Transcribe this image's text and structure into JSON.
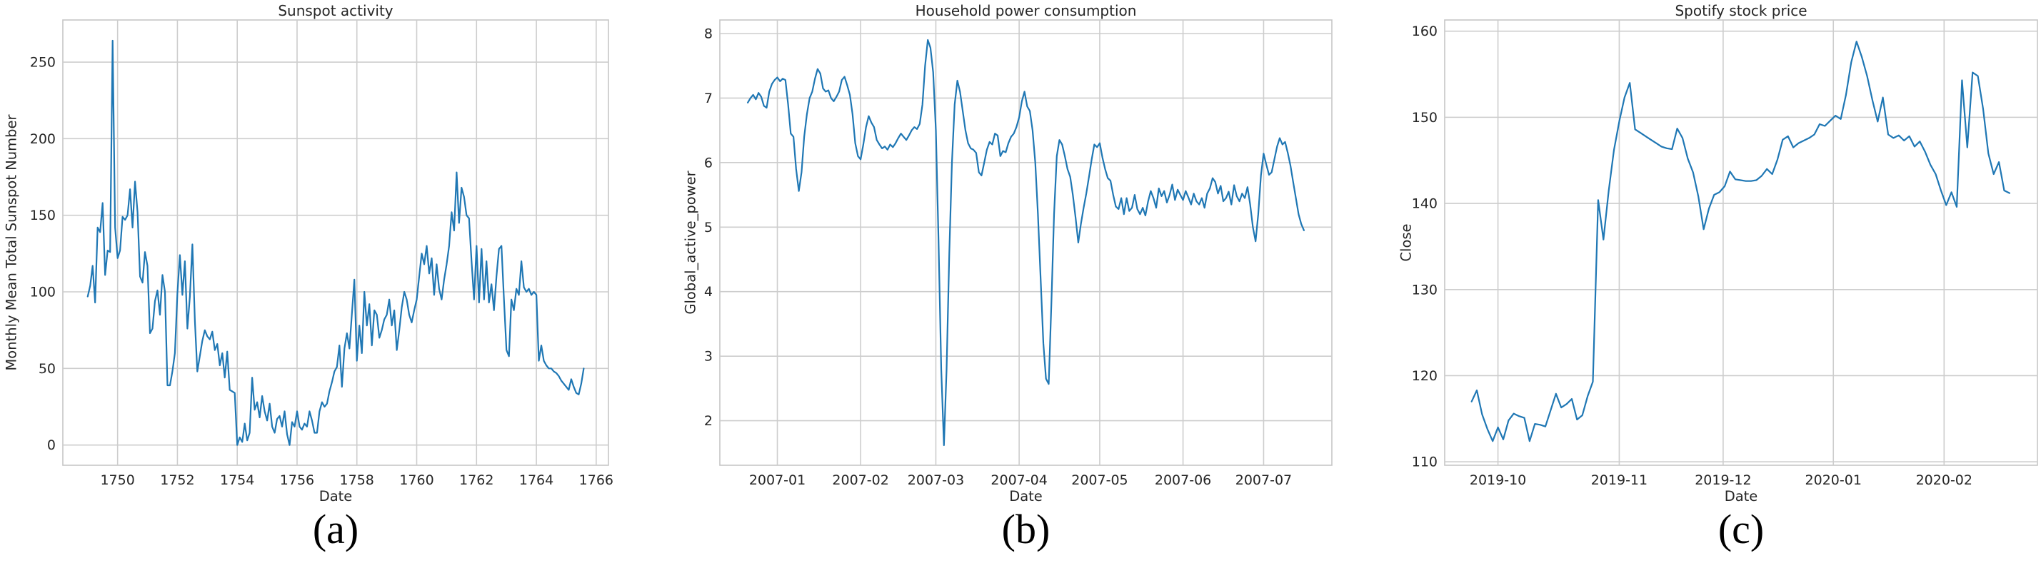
{
  "figure": {
    "background": "#ffffff",
    "grid_color": "#cdcdcd",
    "spine_color": "#c6c6c6",
    "text_color": "#262626",
    "line_color": "#1f77b4"
  },
  "chart_data": [
    {
      "type": "line",
      "title": "Sunspot activity",
      "xlabel": "Date",
      "ylabel": "Monthly Mean Total Sunspot Number",
      "caption": "(a)",
      "legend": "none",
      "grid": true,
      "xlim": [
        1748.17,
        1766.41
      ],
      "ylim": [
        -13.2,
        277.5
      ],
      "xticks": [
        {
          "pos": 1750,
          "label": "1750"
        },
        {
          "pos": 1752,
          "label": "1752"
        },
        {
          "pos": 1754,
          "label": "1754"
        },
        {
          "pos": 1756,
          "label": "1756"
        },
        {
          "pos": 1758,
          "label": "1758"
        },
        {
          "pos": 1760,
          "label": "1760"
        },
        {
          "pos": 1762,
          "label": "1762"
        },
        {
          "pos": 1764,
          "label": "1764"
        },
        {
          "pos": 1766,
          "label": "1766"
        }
      ],
      "yticks": [
        {
          "pos": 0,
          "label": "0"
        },
        {
          "pos": 50,
          "label": "50"
        },
        {
          "pos": 100,
          "label": "100"
        },
        {
          "pos": 150,
          "label": "150"
        },
        {
          "pos": 200,
          "label": "200"
        },
        {
          "pos": 250,
          "label": "250"
        }
      ],
      "x_start": 1749.0,
      "x_step": 0.0833333,
      "x_unit": "year (monthly samples)",
      "values": [
        97,
        104,
        117,
        93,
        142,
        139,
        158,
        111,
        127,
        126,
        264,
        142,
        122,
        127,
        149,
        147,
        150,
        167,
        142,
        172,
        152,
        110,
        106,
        126,
        117,
        73,
        76,
        94,
        101,
        85,
        111,
        100,
        39,
        39,
        48,
        60,
        99,
        124,
        98,
        120,
        76,
        97,
        131,
        81,
        48,
        58,
        68,
        75,
        71,
        69,
        74,
        62,
        66,
        52,
        60,
        44,
        61,
        36,
        35,
        34,
        0,
        5,
        2,
        14,
        3,
        8,
        44,
        23,
        28,
        18,
        32,
        22,
        16,
        27,
        12,
        8,
        17,
        19,
        12,
        22,
        7,
        0,
        15,
        12,
        22,
        12,
        10,
        14,
        12,
        22,
        16,
        8,
        8,
        22,
        28,
        25,
        27,
        35,
        41,
        48,
        51,
        65,
        38,
        63,
        73,
        63,
        86,
        108,
        55,
        78,
        60,
        100,
        78,
        92,
        65,
        88,
        85,
        70,
        75,
        82,
        85,
        95,
        78,
        88,
        62,
        75,
        90,
        100,
        95,
        85,
        80,
        88,
        95,
        110,
        125,
        118,
        130,
        112,
        122,
        98,
        118,
        102,
        95,
        108,
        118,
        130,
        152,
        140,
        178,
        145,
        168,
        162,
        150,
        148,
        120,
        95,
        130,
        93,
        128,
        95,
        120,
        93,
        105,
        88,
        110,
        128,
        130,
        95,
        62,
        58,
        95,
        88,
        102,
        98,
        120,
        103,
        100,
        102,
        98,
        100,
        98,
        55,
        65,
        55,
        52,
        50,
        50,
        48,
        47,
        45,
        42,
        40,
        38,
        36,
        43,
        38,
        34,
        33,
        40,
        50
      ]
    },
    {
      "type": "line",
      "title": "Household power consumption",
      "xlabel": "Date",
      "ylabel": "Global_active_power",
      "caption": "(b)",
      "legend": "none",
      "grid": true,
      "xlim": [
        5.6,
        233.4
      ],
      "ylim": [
        1.31,
        8.21
      ],
      "xticks": [
        {
          "pos": 27,
          "label": "2007-01"
        },
        {
          "pos": 58,
          "label": "2007-02"
        },
        {
          "pos": 86,
          "label": "2007-03"
        },
        {
          "pos": 117,
          "label": "2007-04"
        },
        {
          "pos": 147,
          "label": "2007-05"
        },
        {
          "pos": 178,
          "label": "2007-06"
        },
        {
          "pos": 208,
          "label": "2007-07"
        }
      ],
      "yticks": [
        {
          "pos": 2,
          "label": "2"
        },
        {
          "pos": 3,
          "label": "3"
        },
        {
          "pos": 4,
          "label": "4"
        },
        {
          "pos": 5,
          "label": "5"
        },
        {
          "pos": 6,
          "label": "6"
        },
        {
          "pos": 7,
          "label": "7"
        },
        {
          "pos": 8,
          "label": "8"
        }
      ],
      "x_start": 16,
      "x_step": 1,
      "x_unit": "days since 2006-12-05 (daily samples 2006-12-21 to 2007-07-16)",
      "values": [
        6.93,
        7.0,
        7.05,
        6.98,
        7.08,
        7.02,
        6.88,
        6.85,
        7.1,
        7.22,
        7.28,
        7.32,
        7.26,
        7.3,
        7.28,
        6.9,
        6.45,
        6.4,
        5.9,
        5.56,
        5.85,
        6.4,
        6.75,
        7.0,
        7.1,
        7.3,
        7.45,
        7.38,
        7.15,
        7.1,
        7.12,
        7.0,
        6.95,
        7.02,
        7.1,
        7.28,
        7.33,
        7.2,
        7.05,
        6.75,
        6.3,
        6.1,
        6.05,
        6.28,
        6.55,
        6.72,
        6.62,
        6.55,
        6.35,
        6.28,
        6.22,
        6.25,
        6.2,
        6.28,
        6.24,
        6.3,
        6.38,
        6.45,
        6.4,
        6.35,
        6.42,
        6.5,
        6.55,
        6.52,
        6.6,
        6.9,
        7.5,
        7.9,
        7.78,
        7.4,
        6.5,
        4.8,
        2.8,
        1.62,
        2.8,
        4.6,
        6.0,
        6.9,
        7.27,
        7.1,
        6.8,
        6.5,
        6.3,
        6.22,
        6.2,
        6.15,
        5.85,
        5.8,
        6.0,
        6.2,
        6.32,
        6.28,
        6.45,
        6.42,
        6.1,
        6.18,
        6.16,
        6.3,
        6.4,
        6.45,
        6.55,
        6.7,
        6.95,
        7.1,
        6.87,
        6.8,
        6.5,
        6.0,
        5.2,
        4.2,
        3.2,
        2.65,
        2.57,
        3.8,
        5.2,
        6.1,
        6.35,
        6.28,
        6.1,
        5.9,
        5.78,
        5.5,
        5.15,
        4.76,
        5.05,
        5.3,
        5.52,
        5.78,
        6.05,
        6.28,
        6.24,
        6.3,
        6.08,
        5.9,
        5.76,
        5.72,
        5.5,
        5.32,
        5.28,
        5.45,
        5.2,
        5.45,
        5.25,
        5.3,
        5.5,
        5.28,
        5.2,
        5.3,
        5.18,
        5.4,
        5.56,
        5.45,
        5.3,
        5.6,
        5.48,
        5.56,
        5.38,
        5.5,
        5.66,
        5.42,
        5.58,
        5.5,
        5.42,
        5.56,
        5.46,
        5.35,
        5.52,
        5.4,
        5.35,
        5.45,
        5.3,
        5.52,
        5.6,
        5.76,
        5.7,
        5.52,
        5.64,
        5.4,
        5.45,
        5.55,
        5.35,
        5.65,
        5.48,
        5.4,
        5.52,
        5.45,
        5.62,
        5.35,
        5.0,
        4.78,
        5.2,
        5.8,
        6.14,
        5.97,
        5.81,
        5.85,
        6.05,
        6.25,
        6.38,
        6.28,
        6.32,
        6.15,
        5.95,
        5.7,
        5.45,
        5.2,
        5.05,
        4.95
      ]
    },
    {
      "type": "line",
      "title": "Spotify stock price",
      "xlabel": "Date",
      "ylabel": "Close",
      "caption": "(c)",
      "legend": "none",
      "grid": true,
      "xlim": [
        -5.1,
        107.3
      ],
      "ylim": [
        109.6,
        161.3
      ],
      "xticks": [
        {
          "pos": 5,
          "label": "2019-10"
        },
        {
          "pos": 28,
          "label": "2019-11"
        },
        {
          "pos": 47.7,
          "label": "2019-12"
        },
        {
          "pos": 68.6,
          "label": "2020-01"
        },
        {
          "pos": 89.6,
          "label": "2020-02"
        }
      ],
      "yticks": [
        {
          "pos": 110,
          "label": "110"
        },
        {
          "pos": 120,
          "label": "120"
        },
        {
          "pos": 130,
          "label": "130"
        },
        {
          "pos": 140,
          "label": "140"
        },
        {
          "pos": 150,
          "label": "150"
        },
        {
          "pos": 160,
          "label": "160"
        }
      ],
      "x_start": 0,
      "x_step": 1,
      "x_unit": "trading-day index from 2019-09-24 to 2020-02-19",
      "values": [
        117.0,
        118.3,
        115.5,
        113.8,
        112.4,
        114.0,
        112.6,
        114.8,
        115.6,
        115.3,
        115.1,
        112.4,
        114.4,
        114.3,
        114.1,
        116.0,
        117.9,
        116.3,
        116.7,
        117.3,
        114.9,
        115.4,
        117.6,
        119.3,
        140.4,
        135.8,
        141.5,
        146.2,
        149.5,
        152.3,
        154.0,
        148.6,
        148.2,
        147.8,
        147.4,
        147.0,
        146.6,
        146.4,
        146.3,
        148.7,
        147.6,
        145.2,
        143.6,
        140.8,
        137.0,
        139.4,
        141.0,
        141.3,
        142.0,
        143.7,
        142.8,
        142.7,
        142.6,
        142.6,
        142.7,
        143.2,
        144.0,
        143.4,
        145.1,
        147.4,
        147.8,
        146.5,
        147.0,
        147.3,
        147.6,
        148.0,
        149.2,
        149.0,
        149.6,
        150.2,
        149.8,
        152.6,
        156.4,
        158.8,
        157.0,
        154.8,
        152.0,
        149.5,
        152.3,
        148.0,
        147.6,
        147.9,
        147.3,
        147.8,
        146.6,
        147.2,
        146.0,
        144.5,
        143.4,
        141.5,
        139.8,
        141.3,
        139.6,
        154.3,
        146.5,
        155.2,
        154.8,
        151.0,
        145.8,
        143.4,
        144.8,
        141.5,
        141.2
      ]
    }
  ]
}
